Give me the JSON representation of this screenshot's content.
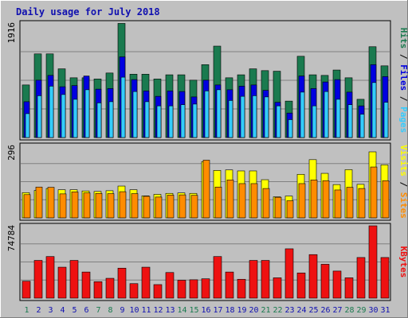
{
  "colors": {
    "frame_bg": "#c0c0c0",
    "title": "#1010b0",
    "hits": "#1a7a4f",
    "files": "#0000e0",
    "pages": "#33ccff",
    "visits": "#ffff00",
    "sites": "#ff8c00",
    "kbytes": "#ee1111",
    "weekend_label": "#1a7a4f",
    "weekday_label": "#1010b0",
    "separator": "#000000"
  },
  "chart_data": {
    "title": "Daily usage for July 2018",
    "type": "bar",
    "x": [
      1,
      2,
      3,
      4,
      5,
      6,
      7,
      8,
      9,
      10,
      11,
      12,
      13,
      14,
      15,
      16,
      17,
      18,
      19,
      20,
      21,
      22,
      23,
      24,
      25,
      26,
      27,
      28,
      29,
      30,
      31
    ],
    "weekend_days": [
      1,
      7,
      8,
      14,
      15,
      21,
      22,
      28,
      29
    ],
    "panels": [
      {
        "id": "top",
        "ymax_label": "1916",
        "ymax": 1916,
        "grid": true,
        "legend": [
          {
            "text": "Hits",
            "color": "#1a7a4f"
          },
          {
            "text": "Files",
            "color": "#0000e0"
          },
          {
            "text": "Pages",
            "color": "#33ccff"
          }
        ],
        "series": [
          {
            "name": "Hits",
            "values": [
              880,
              1400,
              1400,
              1150,
              1000,
              1000,
              980,
              1080,
              1910,
              1060,
              1060,
              980,
              1050,
              1050,
              960,
              1220,
              1530,
              1000,
              1050,
              1150,
              1120,
              1110,
              610,
              1360,
              1050,
              1040,
              1130,
              1000,
              640,
              1520,
              1200
            ]
          },
          {
            "name": "Files",
            "values": [
              600,
              960,
              1040,
              850,
              870,
              1030,
              810,
              820,
              1350,
              970,
              780,
              690,
              780,
              770,
              680,
              960,
              880,
              800,
              860,
              880,
              790,
              590,
              410,
              1030,
              820,
              930,
              970,
              760,
              530,
              1220,
              1020
            ]
          },
          {
            "name": "Pages",
            "values": [
              400,
              700,
              860,
              720,
              640,
              800,
              580,
              600,
              1010,
              770,
              600,
              530,
              530,
              550,
              560,
              780,
              800,
              620,
              690,
              700,
              680,
              530,
              300,
              760,
              530,
              770,
              640,
              550,
              390,
              920,
              590
            ]
          }
        ]
      },
      {
        "id": "middle",
        "ymax_label": "296",
        "ymax": 296,
        "grid": true,
        "legend": [
          {
            "text": "Visits",
            "color": "#ffff00"
          },
          {
            "text": "Sites",
            "color": "#ff8c00"
          }
        ],
        "series": [
          {
            "name": "Visits",
            "values": [
              103,
              112,
              120,
              115,
              115,
              110,
              108,
              111,
              130,
              115,
              90,
              96,
              100,
              102,
              100,
              230,
              194,
              196,
              192,
              192,
              156,
              86,
              89,
              178,
              238,
              182,
              136,
              197,
              137,
              270,
              217
            ]
          },
          {
            "name": "Sites",
            "values": [
              95,
              126,
              125,
              98,
              106,
              102,
              100,
              99,
              107,
              99,
              88,
              85,
              93,
              94,
              92,
              236,
              126,
              155,
              140,
              140,
              120,
              84,
              70,
              140,
              155,
              152,
              114,
              125,
              120,
              208,
              152
            ]
          }
        ]
      },
      {
        "id": "bottom",
        "ymax_label": "74784",
        "ymax": 74784,
        "grid": true,
        "legend": [
          {
            "text": "KBytes",
            "color": "#ee1111"
          }
        ],
        "series": [
          {
            "name": "KBytes",
            "values": [
              17500,
              39000,
              43000,
              32000,
              39000,
              27000,
              17000,
              20500,
              31000,
              15000,
              32000,
              14000,
              26500,
              18500,
              19000,
              20000,
              43000,
              27000,
              19500,
              39000,
              39000,
              21000,
              51000,
              26000,
              45000,
              35000,
              28000,
              21000,
              42000,
              76000,
              42000
            ]
          }
        ]
      }
    ]
  }
}
